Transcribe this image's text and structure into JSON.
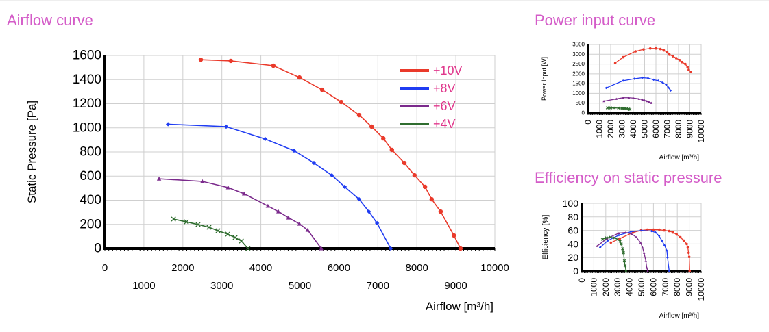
{
  "titles": {
    "airflow": "Airflow curve",
    "power": "Power input curve",
    "efficiency": "Efficiency on static pressure"
  },
  "colors": {
    "title": "#d45cc8",
    "legend_text": "#e0388c",
    "+10V": "#ea3a2b",
    "+8V": "#1f3cf2",
    "+6V": "#7b2a8c",
    "+4V": "#2f6d2f"
  },
  "chart_data": [
    {
      "id": "airflow",
      "type": "line",
      "title": "Airflow curve",
      "xlabel": "Airflow [m³/h]",
      "ylabel": "Static Pressure [Pa]",
      "xlim": [
        0,
        10000
      ],
      "ylim": [
        0,
        1600
      ],
      "xticks": [
        0,
        1000,
        2000,
        3000,
        4000,
        5000,
        6000,
        7000,
        8000,
        9000,
        10000
      ],
      "yticks": [
        0,
        200,
        400,
        600,
        800,
        1000,
        1200,
        1400,
        1600
      ],
      "grid": true,
      "legend": "top-right",
      "series": [
        {
          "name": "+10V",
          "x": [
            2460,
            3230,
            4320,
            4990,
            5570,
            6060,
            6520,
            6840,
            7140,
            7360,
            7680,
            7940,
            8210,
            8380,
            8610,
            8950,
            9120
          ],
          "y": [
            1565,
            1555,
            1515,
            1418,
            1316,
            1214,
            1106,
            1010,
            913,
            817,
            709,
            607,
            511,
            408,
            306,
            108,
            0
          ]
        },
        {
          "name": "+8V",
          "x": [
            1620,
            3110,
            4110,
            4850,
            5360,
            5820,
            6150,
            6520,
            6770,
            6980,
            7330
          ],
          "y": [
            1030,
            1010,
            908,
            811,
            709,
            607,
            511,
            408,
            306,
            210,
            0
          ]
        },
        {
          "name": "+6V",
          "x": [
            1390,
            2500,
            3160,
            3570,
            4180,
            4450,
            4710,
            4990,
            5200,
            5550
          ],
          "y": [
            578,
            556,
            505,
            454,
            352,
            306,
            255,
            204,
            153,
            0
          ]
        },
        {
          "name": "+4V",
          "x": [
            1760,
            2090,
            2390,
            2670,
            2900,
            3150,
            3340,
            3500,
            3670
          ],
          "y": [
            244,
            221,
            199,
            176,
            147,
            119,
            91,
            62,
            0
          ]
        }
      ]
    },
    {
      "id": "power",
      "type": "line",
      "title": "Power input curve",
      "xlabel": "Airflow [m³/h]",
      "ylabel": "Power Input [W]",
      "xlim": [
        0,
        10000
      ],
      "ylim": [
        0,
        3500
      ],
      "xticks": [
        0,
        1000,
        2000,
        3000,
        4000,
        5000,
        6000,
        7000,
        8000,
        9000,
        10000
      ],
      "yticks": [
        0,
        500,
        1000,
        1500,
        2000,
        2500,
        3000,
        3500
      ],
      "grid": true,
      "series": [
        {
          "name": "+10V",
          "x": [
            2400,
            3100,
            4200,
            4900,
            5500,
            6000,
            6400,
            6700,
            7000,
            7200,
            7500,
            7800,
            8100,
            8300,
            8600,
            8800,
            8900,
            9100
          ],
          "y": [
            2550,
            2850,
            3150,
            3250,
            3300,
            3300,
            3270,
            3200,
            3100,
            2980,
            2900,
            2800,
            2700,
            2600,
            2500,
            2350,
            2200,
            2100
          ]
        },
        {
          "name": "+8V",
          "x": [
            1600,
            3100,
            4100,
            4800,
            5300,
            5800,
            6200,
            6600,
            6900,
            7100,
            7300
          ],
          "y": [
            1280,
            1650,
            1750,
            1800,
            1780,
            1700,
            1650,
            1550,
            1450,
            1300,
            1150
          ]
        },
        {
          "name": "+6V",
          "x": [
            1400,
            2500,
            3100,
            3600,
            4000,
            4500,
            4800,
            5000,
            5200,
            5400,
            5600
          ],
          "y": [
            600,
            720,
            780,
            780,
            760,
            720,
            680,
            640,
            600,
            560,
            510
          ]
        },
        {
          "name": "+4V",
          "x": [
            1700,
            2000,
            2300,
            2700,
            3000,
            3200,
            3400,
            3600,
            3700
          ],
          "y": [
            260,
            260,
            260,
            250,
            240,
            230,
            220,
            200,
            180
          ]
        }
      ]
    },
    {
      "id": "efficiency",
      "type": "line",
      "title": "Efficiency on static pressure",
      "xlabel": "Airflow [m³/h]",
      "ylabel": "Efficiency [%]",
      "xlim": [
        0,
        10000
      ],
      "ylim": [
        0,
        100
      ],
      "xticks": [
        0,
        1000,
        2000,
        3000,
        4000,
        5000,
        6000,
        7000,
        8000,
        9000,
        10000
      ],
      "yticks": [
        0,
        20,
        40,
        60,
        80,
        100
      ],
      "grid": true,
      "series": [
        {
          "name": "+10V",
          "x": [
            2430,
            3180,
            4290,
            4960,
            5480,
            6000,
            6490,
            6900,
            7320,
            7640,
            7950,
            8260,
            8540,
            8790,
            8880,
            8950,
            9000,
            9040
          ],
          "y": [
            42,
            48,
            57,
            60,
            61,
            61,
            61,
            60,
            59,
            57,
            54,
            50,
            45,
            40,
            35,
            27,
            21,
            0
          ]
        },
        {
          "name": "+8V",
          "x": [
            1530,
            2180,
            3100,
            4100,
            5020,
            5840,
            6170,
            6470,
            6700,
            6930,
            7130,
            7180,
            7320
          ],
          "y": [
            35,
            45,
            53,
            58,
            60,
            59,
            57,
            52,
            45,
            38,
            30,
            20,
            0
          ]
        },
        {
          "name": "+6V",
          "x": [
            1280,
            2110,
            3100,
            3680,
            4160,
            4560,
            4920,
            5080,
            5210,
            5360,
            5440,
            5520
          ],
          "y": [
            37,
            48,
            56,
            57,
            55,
            50,
            42,
            35,
            27,
            15,
            5,
            0
          ]
        },
        {
          "name": "+4V",
          "x": [
            1720,
            2050,
            2380,
            2720,
            2970,
            3200,
            3300,
            3410,
            3490,
            3560,
            3620,
            3700
          ],
          "y": [
            47,
            49,
            50,
            49,
            47,
            44,
            40,
            33,
            27,
            15,
            8,
            0
          ]
        }
      ]
    }
  ]
}
